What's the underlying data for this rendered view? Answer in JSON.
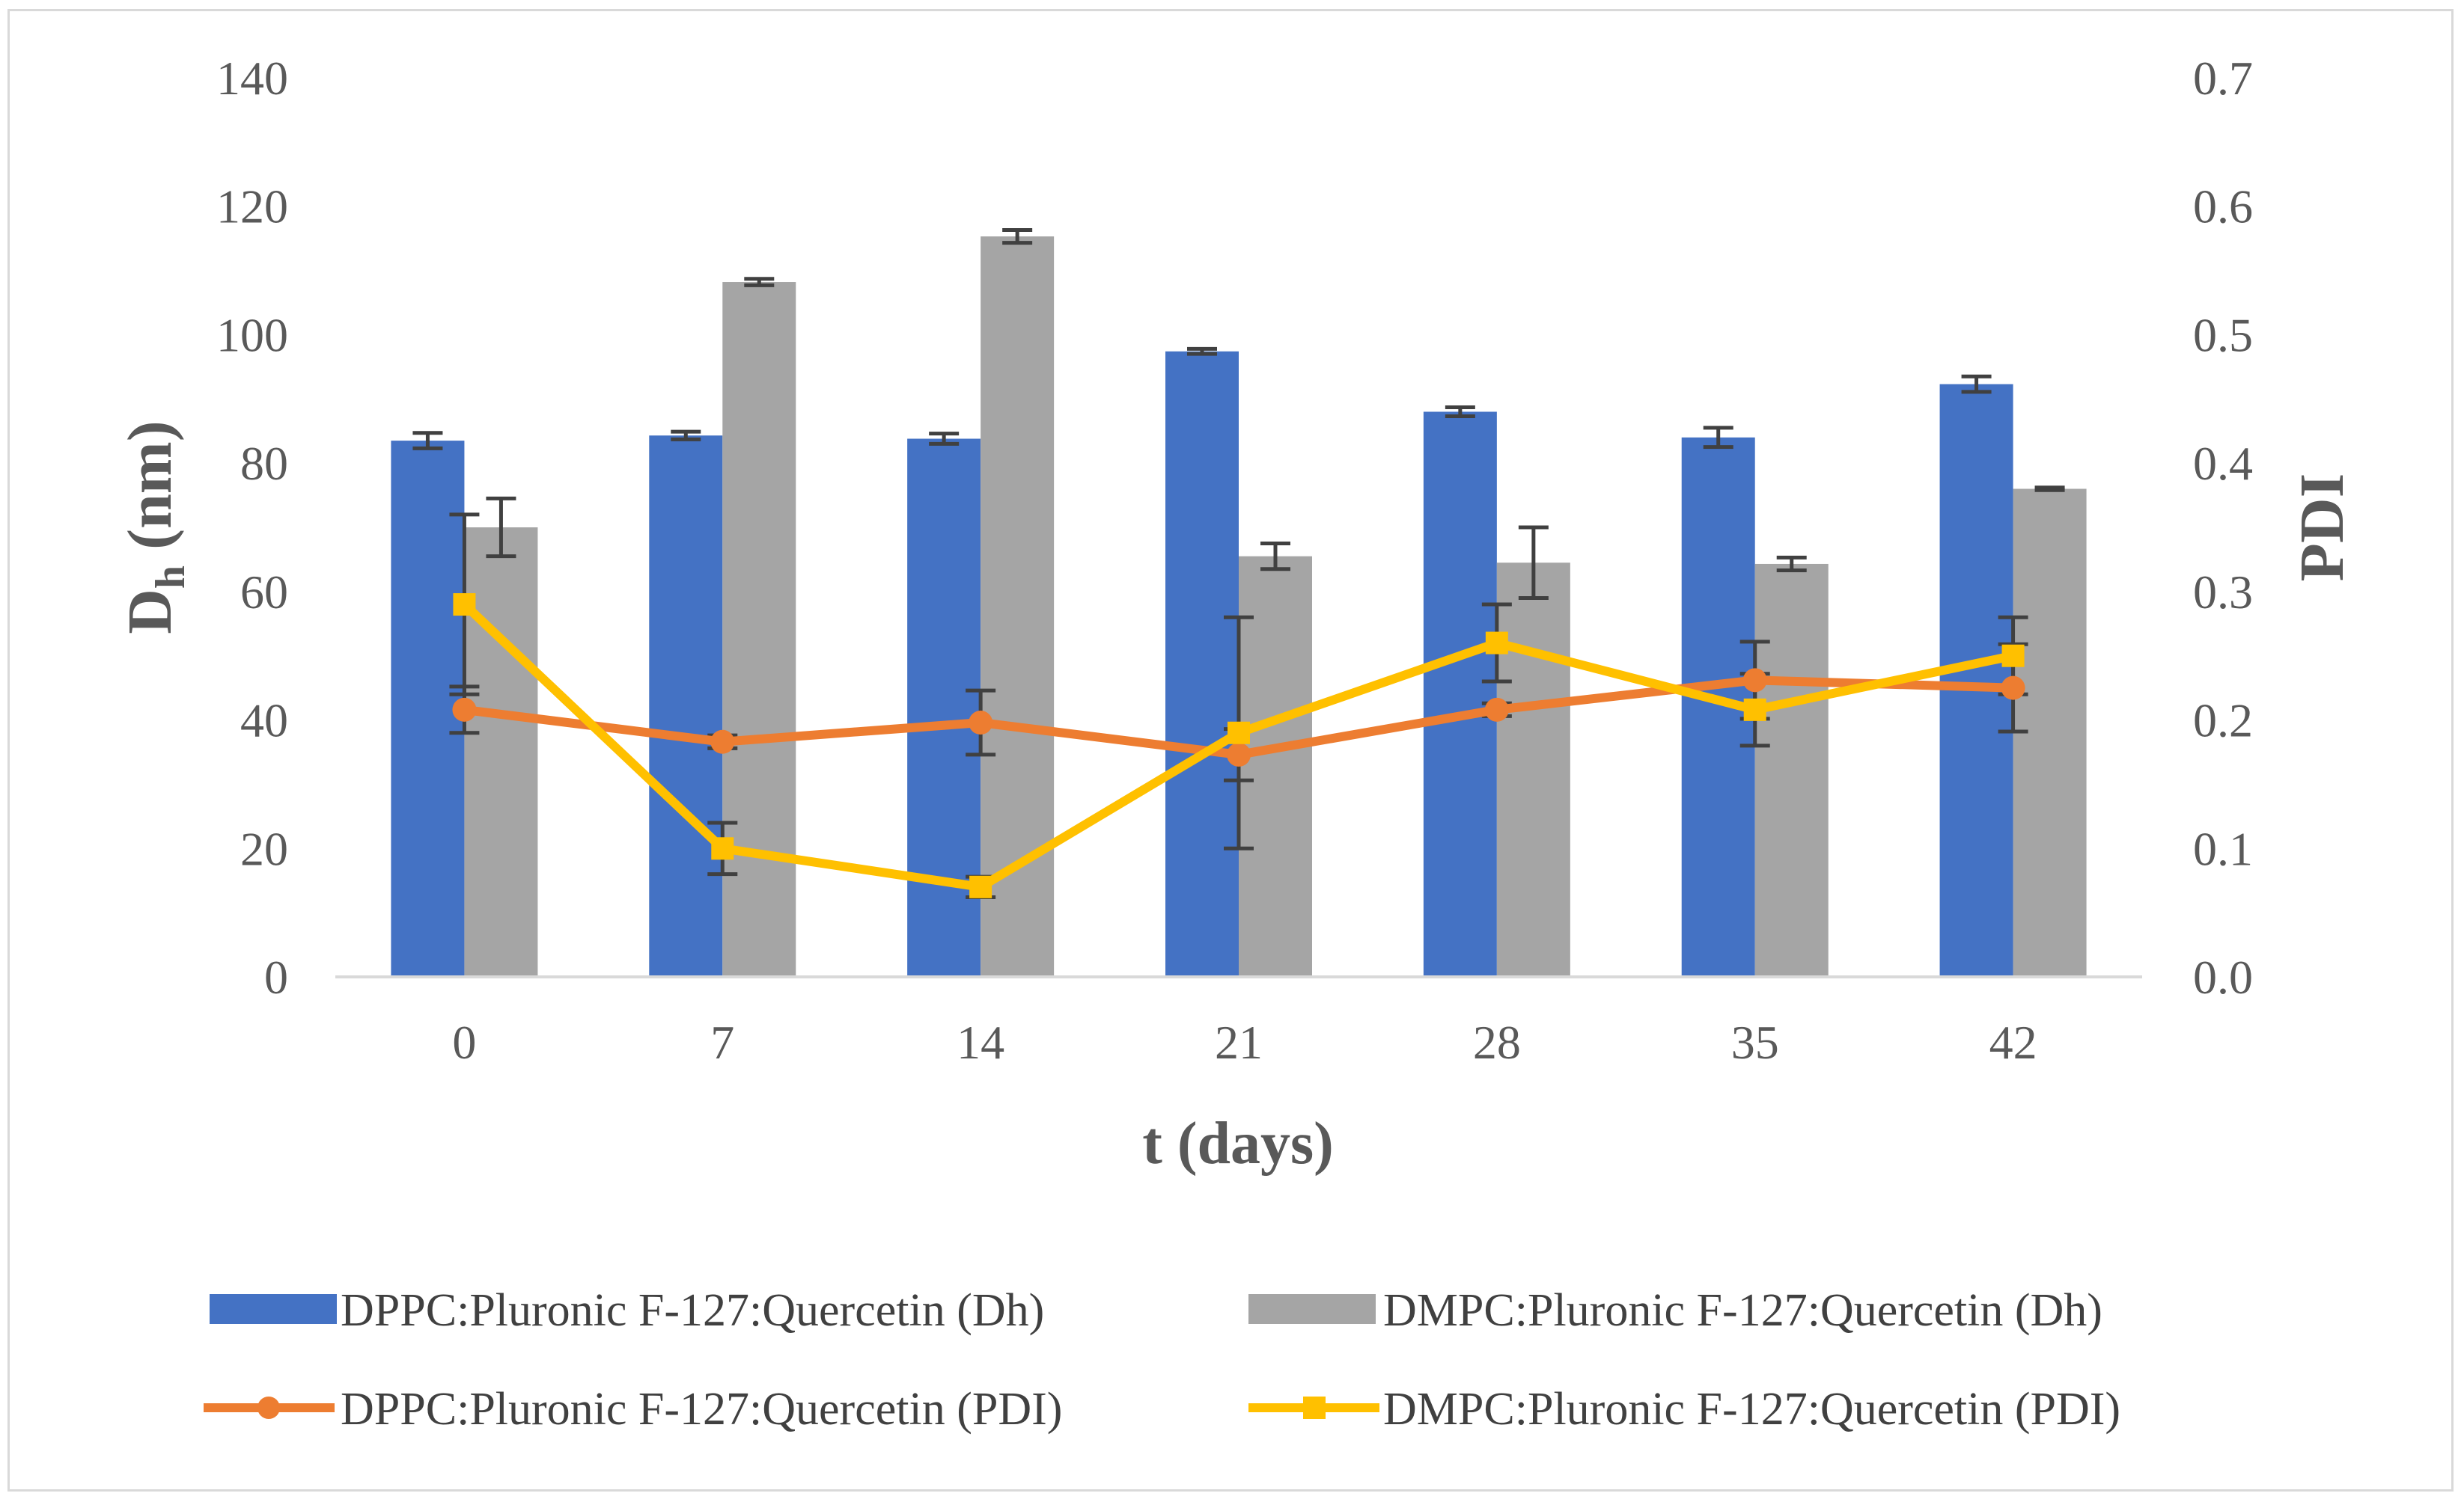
{
  "chart_data": {
    "type": "bar+line",
    "categories": [
      "0",
      "7",
      "14",
      "21",
      "28",
      "35",
      "42"
    ],
    "x": [
      0,
      7,
      14,
      21,
      28,
      35,
      42
    ],
    "xlabel": "t (days)",
    "ylabel": {
      "main": "D",
      "sub": "h",
      "rest": " (nm)"
    },
    "y2label": "PDI",
    "ylim": [
      0,
      140
    ],
    "y2lim": [
      0,
      0.7
    ],
    "yticks": [
      "0",
      "20",
      "40",
      "60",
      "80",
      "100",
      "120",
      "140"
    ],
    "y2ticks": [
      "0.0",
      "0.1",
      "0.2",
      "0.3",
      "0.4",
      "0.5",
      "0.6",
      "0.7"
    ],
    "bar_series": [
      {
        "name": "DPPC:Pluronic F-127:Quercetin (Dh)",
        "color": "#4472c4",
        "values": [
          83.5,
          84.3,
          83.8,
          97.4,
          88,
          84,
          92.3
        ],
        "errors": [
          1.2,
          0.6,
          0.8,
          0.4,
          0.7,
          1.5,
          1.2
        ]
      },
      {
        "name": "DMPC:Pluronic F-127:Quercetin (Dh)",
        "color": "#a5a5a5",
        "values": [
          70,
          108.2,
          115.3,
          65.5,
          64.5,
          64.3,
          76
        ],
        "errors": [
          4.5,
          0.5,
          1.0,
          2.0,
          5.5,
          1.0,
          0.2
        ]
      }
    ],
    "line_series": [
      {
        "name": "DPPC:Pluronic F-127:Quercetin (PDI)",
        "color": "#ed7d31",
        "marker": "circle",
        "values": [
          0.208,
          0.183,
          0.198,
          0.173,
          0.208,
          0.231,
          0.225
        ],
        "errors": [
          0.018,
          0.005,
          0.025,
          0.02,
          0.005,
          0.03,
          0.034
        ]
      },
      {
        "name": "DMPC:Pluronic F-127:Quercetin (PDI)",
        "color": "#ffc000",
        "marker": "square",
        "values": [
          0.29,
          0.1,
          0.07,
          0.19,
          0.26,
          0.208,
          0.25
        ],
        "errors": [
          0.07,
          0.02,
          0.008,
          0.09,
          0.03,
          0.028,
          0.03
        ]
      }
    ],
    "grid": false,
    "legend": "bottom"
  }
}
